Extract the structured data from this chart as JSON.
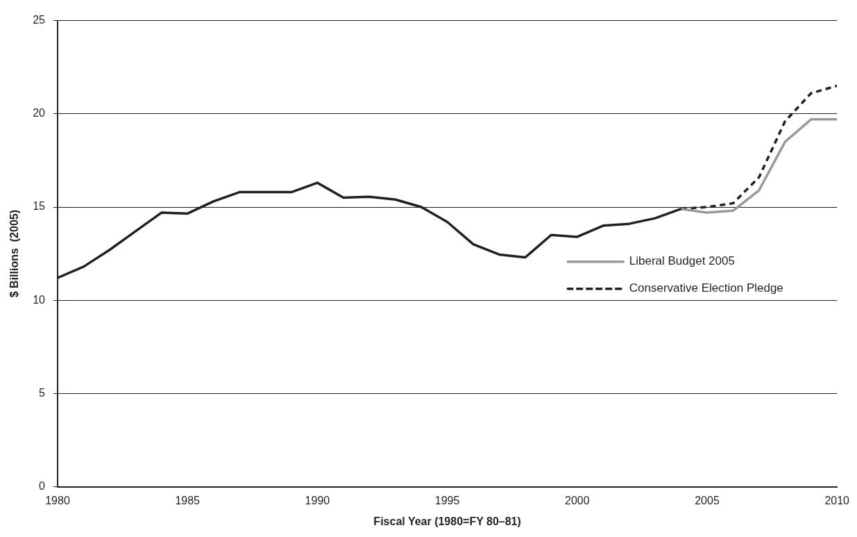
{
  "chart_data": {
    "type": "line",
    "xlabel": "Fiscal Year (1980=FY 80–81)",
    "ylabel": "$ Billions  (2005)",
    "xlim": [
      1980,
      2010
    ],
    "xticks": [
      1980,
      1985,
      1990,
      1995,
      2000,
      2005,
      2010
    ],
    "ylim": [
      0,
      25
    ],
    "yticks": [
      0,
      5,
      10,
      15,
      20,
      25
    ],
    "grid": "y",
    "legend": "right",
    "marker": "none",
    "series": [
      {
        "color": "#231f20",
        "line_style": "solid",
        "x": [
          1980,
          1981,
          1982,
          1983,
          1984,
          1985,
          1986,
          1987,
          1988,
          1989,
          1990,
          1991,
          1992,
          1993,
          1994,
          1995,
          1996,
          1997,
          1998,
          1999,
          2000,
          2001,
          2002,
          2003,
          2004
        ],
        "values": [
          11.2,
          11.8,
          12.7,
          13.7,
          14.7,
          14.65,
          15.3,
          15.8,
          15.8,
          15.8,
          16.3,
          15.5,
          15.55,
          15.4,
          15.0,
          14.2,
          13.0,
          12.45,
          12.3,
          13.5,
          13.4,
          14.0,
          14.1,
          14.4,
          14.9
        ]
      },
      {
        "name": "Liberal Budget 2005",
        "color": "#999999",
        "line_style": "solid",
        "x": [
          2004,
          2005,
          2006,
          2007,
          2008,
          2009,
          2010
        ],
        "values": [
          14.9,
          14.7,
          14.8,
          15.9,
          18.5,
          19.7,
          19.7
        ]
      },
      {
        "name": "Conservative Election Pledge",
        "color": "#231f20",
        "line_style": "dashed",
        "x": [
          2004,
          2005,
          2006,
          2007,
          2008,
          2009,
          2010
        ],
        "values": [
          14.9,
          15.0,
          15.2,
          16.6,
          19.6,
          21.1,
          21.5
        ]
      }
    ]
  }
}
